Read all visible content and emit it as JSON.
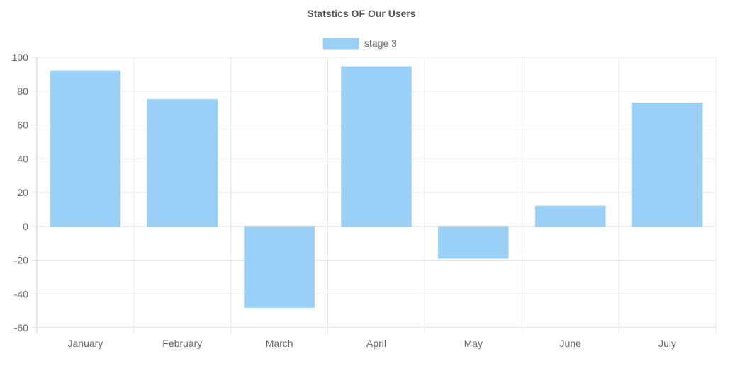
{
  "chart_data": {
    "type": "bar",
    "title": "Statstics OF Our Users",
    "categories": [
      "January",
      "February",
      "March",
      "April",
      "May",
      "June",
      "July"
    ],
    "series": [
      {
        "name": "stage 3",
        "values": [
          92,
          75,
          -48,
          94.5,
          -19,
          12,
          73
        ]
      }
    ],
    "ylim": [
      -60,
      100
    ],
    "yticks": [
      "100",
      "80",
      "60",
      "40",
      "20",
      "0",
      "-20",
      "-40",
      "-60"
    ],
    "grid": true,
    "legend": "top-center",
    "colors": {
      "bar_fill": "#9ad0f5",
      "bar_stroke": "#9ad0f5",
      "grid": "#e5e5e5",
      "axis": "#cccccc",
      "text": "#666666"
    }
  }
}
